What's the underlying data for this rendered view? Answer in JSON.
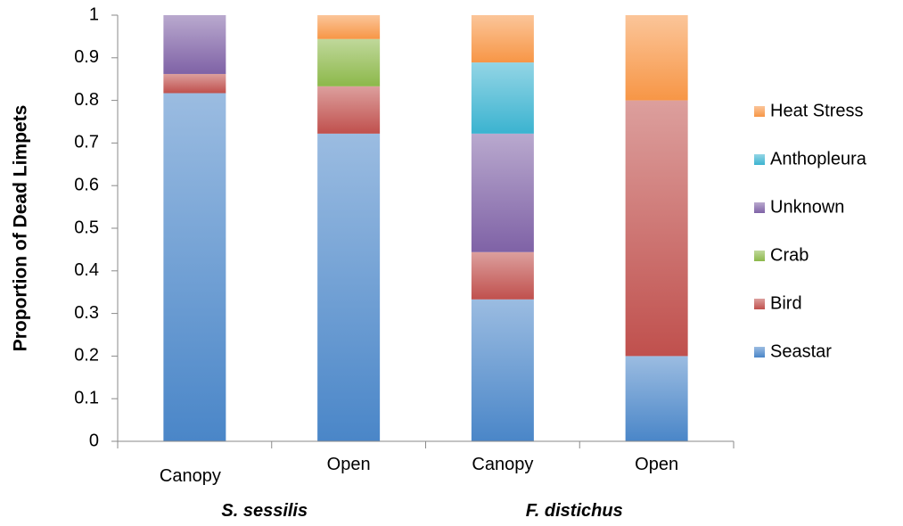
{
  "chart_data": {
    "type": "bar",
    "stacked": true,
    "ylabel": "Proportion of Dead Limpets",
    "ylim": [
      0,
      1
    ],
    "yticks": [
      "0",
      "0.1",
      "0.2",
      "0.3",
      "0.4",
      "0.5",
      "0.6",
      "0.7",
      "0.8",
      "0.9",
      "1"
    ],
    "categories": [
      "Canopy",
      "Open",
      "Canopy",
      "Open"
    ],
    "groups": [
      "S. sessilis",
      "F. distichus"
    ],
    "legend_position": "right",
    "grid": false,
    "series": [
      {
        "name": "Seastar",
        "color": "#4a86c8",
        "values": [
          0.817,
          0.722,
          0.333,
          0.2
        ]
      },
      {
        "name": "Bird",
        "color": "#c0504d",
        "values": [
          0.045,
          0.111,
          0.111,
          0.6
        ]
      },
      {
        "name": "Crab",
        "color": "#8cb84a",
        "values": [
          0,
          0.111,
          0,
          0
        ]
      },
      {
        "name": "Unknown",
        "color": "#7f62a6",
        "values": [
          0.138,
          0,
          0.278,
          0
        ]
      },
      {
        "name": "Anthopleura",
        "color": "#3bb3d0",
        "values": [
          0,
          0,
          0.167,
          0
        ]
      },
      {
        "name": "Heat Stress",
        "color": "#f79646",
        "values": [
          0,
          0.056,
          0.111,
          0.2
        ]
      }
    ]
  }
}
